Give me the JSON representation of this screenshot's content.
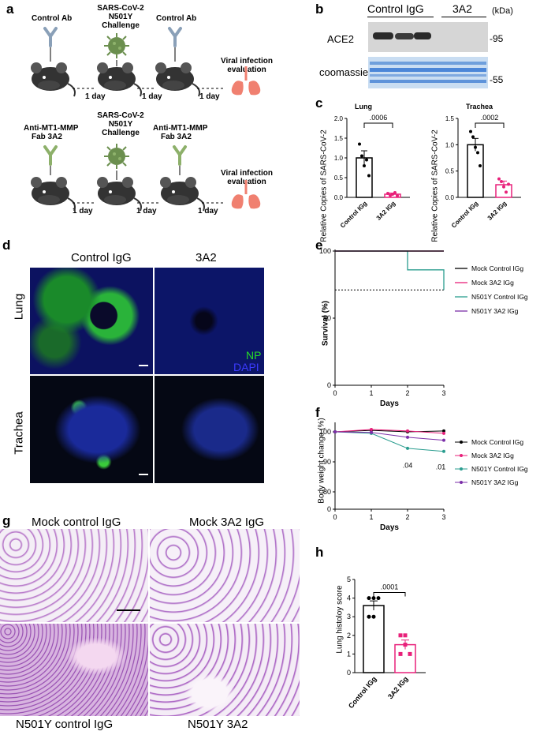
{
  "panel_labels": {
    "a": "a",
    "b": "b",
    "c": "c",
    "d": "d",
    "e": "e",
    "f": "f",
    "g": "g",
    "h": "h"
  },
  "panel_a": {
    "row1": {
      "ab1": "Control Ab",
      "challenge": [
        "SARS-CoV-2",
        "N501Y",
        "Challenge"
      ],
      "ab2": "Control Ab"
    },
    "row2": {
      "ab1": [
        "Anti-MT1-MMP",
        "Fab 3A2"
      ],
      "challenge": [
        "SARS-CoV-2",
        "N501Y",
        "Challenge"
      ],
      "ab2": [
        "Anti-MT1-MMP",
        "Fab 3A2"
      ]
    },
    "day_label": "1 day",
    "evaluation": [
      "Viral infection",
      "evaluation"
    ]
  },
  "panel_b": {
    "group1": "Control IgG",
    "group2": "3A2",
    "unit": "(kDa)",
    "row1": "ACE2",
    "row2": "coomassie",
    "marker1": "-95",
    "marker2": "-55"
  },
  "panel_c": {
    "ylabel": "Relative Copies of SARS-CoV-2",
    "colors": {
      "control": "#000000",
      "treated": "#e8207a"
    },
    "charts": [
      {
        "title": "Lung",
        "p": ".0006",
        "ylim": [
          0,
          2.0
        ],
        "yticks": [
          "0.0",
          "0.5",
          "1.0",
          "1.5",
          "2.0"
        ],
        "categories": [
          "Control IGg",
          "3A2 IGg"
        ],
        "values": [
          1.0,
          0.08
        ],
        "errors": [
          0.18,
          0.03
        ],
        "points": [
          [
            1.35,
            1.05,
            0.8,
            0.95,
            0.55
          ],
          [
            0.1,
            0.05,
            0.08,
            0.12,
            0.04
          ]
        ]
      },
      {
        "title": "Trachea",
        "p": ".0002",
        "ylim": [
          0,
          1.5
        ],
        "yticks": [
          "0.0",
          "0.5",
          "1.0",
          "1.5"
        ],
        "categories": [
          "Control IGg",
          "3A2 IGg"
        ],
        "values": [
          1.0,
          0.24
        ],
        "errors": [
          0.12,
          0.07
        ],
        "points": [
          [
            1.25,
            1.15,
            0.95,
            0.85,
            0.6
          ],
          [
            0.35,
            0.3,
            0.2,
            0.1,
            0.25
          ]
        ]
      }
    ]
  },
  "panel_d": {
    "col1": "Control IgG",
    "col2": "3A2",
    "row1": "Lung",
    "row2": "Trachea",
    "np": "NP",
    "dapi": "DAPI"
  },
  "chart_data": [
    {
      "type": "line",
      "panel": "e",
      "xlabel": "Days",
      "ylabel": "Survival (%)",
      "x": [
        0,
        1,
        2,
        3
      ],
      "xlim": [
        0,
        3
      ],
      "ylim": [
        0,
        100
      ],
      "yticks": [
        "0",
        "50",
        "100"
      ],
      "xticks": [
        "0",
        "1",
        "2",
        "3"
      ],
      "series": [
        {
          "name": "Mock Control IGg",
          "color": "#000000",
          "points": [
            [
              0,
              100
            ],
            [
              3,
              100
            ]
          ]
        },
        {
          "name": "Mock 3A2 IGg",
          "color": "#e8207a",
          "points": [
            [
              0,
              100
            ],
            [
              3,
              100
            ]
          ]
        },
        {
          "name": "N501Y Control IGg",
          "color": "#2a9d8f",
          "points": [
            [
              0,
              100
            ],
            [
              2,
              100
            ],
            [
              2,
              86
            ],
            [
              3,
              86
            ],
            [
              3,
              71
            ]
          ]
        },
        {
          "name": "N501Y 3A2 IGg",
          "color": "#7b2fa8",
          "points": [
            [
              0,
              100
            ],
            [
              3,
              100
            ]
          ]
        }
      ],
      "reference_line": 71
    },
    {
      "type": "line",
      "panel": "f",
      "xlabel": "Days",
      "ylabel": "Body weight change (%)",
      "x": [
        0,
        1,
        2,
        3
      ],
      "xlim": [
        0,
        3
      ],
      "ylim": [
        0,
        100
      ],
      "yticks": [
        "0",
        "80",
        "90",
        "100"
      ],
      "xticks": [
        "0",
        "1",
        "2",
        "3"
      ],
      "series": [
        {
          "name": "Mock Control IGg",
          "color": "#000000",
          "values": [
            100,
            100.5,
            100,
            100.3
          ]
        },
        {
          "name": "Mock 3A2 IGg",
          "color": "#e8207a",
          "values": [
            100,
            100.8,
            100.3,
            99.5
          ]
        },
        {
          "name": "N501Y Control IGg",
          "color": "#2a9d8f",
          "values": [
            100,
            99.5,
            94.5,
            93.5
          ]
        },
        {
          "name": "N501Y 3A2 IGg",
          "color": "#7b2fa8",
          "values": [
            100,
            99.8,
            98.2,
            97.2
          ]
        }
      ],
      "annotations": [
        ".04",
        ".01"
      ]
    },
    {
      "type": "bar",
      "panel": "h",
      "ylabel": "Lung histoloy score",
      "categories": [
        "Control IGg",
        "3A2 IGg"
      ],
      "values": [
        3.6,
        1.5
      ],
      "errors": [
        0.25,
        0.25
      ],
      "ylim": [
        0,
        5
      ],
      "yticks": [
        "0",
        "1",
        "2",
        "3",
        "4",
        "5"
      ],
      "p": ".0001",
      "points": [
        [
          4.0,
          4.0,
          4.0,
          3.0,
          3.0
        ],
        [
          2.0,
          2.0,
          1.0,
          1.0,
          1.5
        ]
      ]
    }
  ],
  "panel_g": {
    "tl": "Mock control IgG",
    "tr": "Mock 3A2 IgG",
    "bl": "N501Y control IgG",
    "br": "N501Y 3A2"
  }
}
